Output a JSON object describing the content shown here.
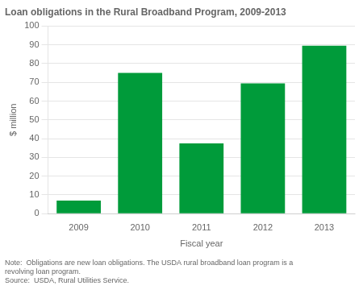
{
  "chart_data": {
    "type": "bar",
    "title": "Loan obligations in the Rural Broadband Program, 2009-2013",
    "ylabel": "$ million",
    "xlabel": "Fiscal year",
    "categories": [
      "2009",
      "2010",
      "2011",
      "2012",
      "2013"
    ],
    "values": [
      7,
      75,
      37.5,
      69.5,
      89.5
    ],
    "color": "#009B3A",
    "ylim": [
      0,
      100
    ],
    "yticks": [
      0,
      10,
      20,
      30,
      40,
      50,
      60,
      70,
      80,
      90,
      100
    ],
    "grid": true,
    "annotations": [
      "Note:  Obligations are new loan obligations. The USDA rural broadband loan program is a",
      "revolving loan program.",
      "Source:  USDA, Rural Utilities Service."
    ]
  }
}
